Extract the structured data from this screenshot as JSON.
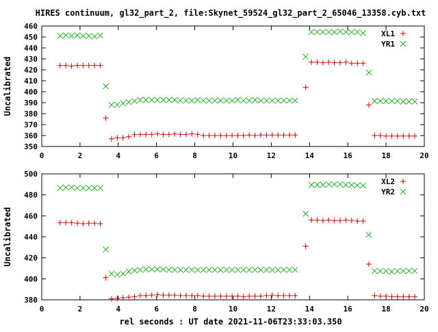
{
  "title": "HIRES continuum, gl32_part_2, file:Skynet_59524_gl32_part_2_65046_13358.cyb.txt",
  "xlabel": "rel seconds : UT date 2021-11-06T23:33:03.350",
  "colors": {
    "red": "#cc0000",
    "green": "#22aa22",
    "frame": "#000000"
  },
  "chart_data": [
    {
      "type": "scatter",
      "ylabel": "Uncalibrated",
      "xlim": [
        0,
        20
      ],
      "ylim": [
        350,
        460
      ],
      "x_ticks": [
        0,
        2,
        4,
        6,
        8,
        10,
        12,
        14,
        16,
        18,
        20
      ],
      "y_ticks": [
        350,
        360,
        370,
        380,
        390,
        400,
        410,
        420,
        430,
        440,
        450,
        460
      ],
      "legend_placement": "top-right",
      "grid": false,
      "series": [
        {
          "name": "XL1",
          "marker": "plus",
          "color": "#cc0000",
          "x": [
            0.96,
            1.26,
            1.56,
            1.86,
            2.16,
            2.46,
            2.76,
            3.06,
            3.35,
            3.65,
            3.95,
            4.25,
            4.55,
            4.85,
            5.15,
            5.45,
            5.75,
            6.05,
            6.35,
            6.65,
            6.95,
            7.25,
            7.55,
            7.85,
            8.15,
            8.45,
            8.75,
            9.05,
            9.35,
            9.65,
            9.95,
            10.25,
            10.55,
            10.85,
            11.15,
            11.45,
            11.75,
            12.05,
            12.35,
            12.65,
            12.95,
            13.25,
            13.8,
            14.1,
            14.4,
            14.7,
            15.0,
            15.3,
            15.6,
            15.9,
            16.2,
            16.5,
            16.8,
            17.1,
            17.4,
            17.7,
            18.0,
            18.3,
            18.6,
            18.9,
            19.2,
            19.5
          ],
          "y": [
            424,
            424,
            423.5,
            424,
            424,
            424,
            424,
            424,
            376,
            357,
            358,
            358,
            359,
            361,
            361,
            361,
            361,
            361.5,
            361,
            361,
            361.5,
            361,
            361,
            361.5,
            361,
            360,
            360,
            360,
            360,
            360,
            360,
            360,
            360,
            360.5,
            360,
            360.5,
            360.5,
            360.5,
            360.5,
            360.5,
            360.5,
            360.5,
            404,
            427,
            427,
            426.5,
            427,
            426.5,
            426.5,
            427,
            426,
            426,
            426,
            388,
            360,
            360,
            359.5,
            359.5,
            359.5,
            359.5,
            359.5,
            359.5
          ]
        },
        {
          "name": "YR1",
          "marker": "cross",
          "color": "#22aa22",
          "x": [
            0.96,
            1.26,
            1.56,
            1.86,
            2.16,
            2.46,
            2.76,
            3.06,
            3.35,
            3.65,
            3.95,
            4.25,
            4.55,
            4.85,
            5.15,
            5.45,
            5.75,
            6.05,
            6.35,
            6.65,
            6.95,
            7.25,
            7.55,
            7.85,
            8.15,
            8.45,
            8.75,
            9.05,
            9.35,
            9.65,
            9.95,
            10.25,
            10.55,
            10.85,
            11.15,
            11.45,
            11.75,
            12.05,
            12.35,
            12.65,
            12.95,
            13.25,
            13.8,
            14.1,
            14.4,
            14.7,
            15.0,
            15.3,
            15.6,
            15.9,
            16.2,
            16.5,
            16.8,
            17.1,
            17.4,
            17.7,
            18.0,
            18.3,
            18.6,
            18.9,
            19.2,
            19.5
          ],
          "y": [
            451,
            451.5,
            451,
            451.5,
            451,
            451,
            450.5,
            451.5,
            405,
            388,
            388,
            389.5,
            390.5,
            391.5,
            392.5,
            392.5,
            392.5,
            392.5,
            392.5,
            392.5,
            392.5,
            392,
            392,
            392,
            392.5,
            392,
            392,
            392,
            392,
            392,
            392,
            392.5,
            392,
            392,
            392.5,
            392,
            392,
            392,
            392,
            392,
            392,
            392,
            432,
            454.5,
            454.5,
            454.5,
            454.5,
            454.5,
            455,
            454.5,
            454.5,
            454.5,
            453.5,
            417.5,
            391.5,
            391.5,
            391.5,
            391.5,
            391.5,
            391,
            391,
            391
          ]
        }
      ]
    },
    {
      "type": "scatter",
      "ylabel": "Uncalibrated",
      "xlim": [
        0,
        20
      ],
      "ylim": [
        380,
        500
      ],
      "x_ticks": [
        0,
        2,
        4,
        6,
        8,
        10,
        12,
        14,
        16,
        18,
        20
      ],
      "y_ticks": [
        380,
        400,
        420,
        440,
        460,
        480,
        500
      ],
      "legend_placement": "top-right",
      "grid": false,
      "series": [
        {
          "name": "XL2",
          "marker": "plus",
          "color": "#cc0000",
          "x": [
            0.96,
            1.26,
            1.56,
            1.86,
            2.16,
            2.46,
            2.76,
            3.06,
            3.35,
            3.65,
            3.95,
            4.25,
            4.55,
            4.85,
            5.15,
            5.45,
            5.75,
            6.05,
            6.35,
            6.65,
            6.95,
            7.25,
            7.55,
            7.85,
            8.15,
            8.45,
            8.75,
            9.05,
            9.35,
            9.65,
            9.95,
            10.25,
            10.55,
            10.85,
            11.15,
            11.45,
            11.75,
            12.05,
            12.35,
            12.65,
            12.95,
            13.25,
            13.8,
            14.1,
            14.4,
            14.7,
            15.0,
            15.3,
            15.6,
            15.9,
            16.2,
            16.5,
            16.8,
            17.1,
            17.4,
            17.7,
            18.0,
            18.3,
            18.6,
            18.9,
            19.2,
            19.5
          ],
          "y": [
            453.5,
            453.5,
            453.5,
            453,
            452.5,
            453,
            453,
            452.5,
            401,
            381,
            381.5,
            382,
            382.5,
            383,
            384,
            384,
            384.5,
            385,
            384.5,
            384.5,
            384.5,
            384,
            384,
            384,
            384,
            383.5,
            383.5,
            383.5,
            383.5,
            383.5,
            383.5,
            383.5,
            383,
            383.5,
            383.5,
            383.5,
            384,
            384.5,
            384,
            384,
            384,
            384,
            431,
            456,
            456,
            455.5,
            456,
            455.5,
            455.5,
            456,
            455.5,
            455,
            455,
            414,
            384,
            383.5,
            383.5,
            383,
            383,
            383,
            383,
            383
          ]
        },
        {
          "name": "YR2",
          "marker": "cross",
          "color": "#22aa22",
          "x": [
            0.96,
            1.26,
            1.56,
            1.86,
            2.16,
            2.46,
            2.76,
            3.06,
            3.35,
            3.65,
            3.95,
            4.25,
            4.55,
            4.85,
            5.15,
            5.45,
            5.75,
            6.05,
            6.35,
            6.65,
            6.95,
            7.25,
            7.55,
            7.85,
            8.15,
            8.45,
            8.75,
            9.05,
            9.35,
            9.65,
            9.95,
            10.25,
            10.55,
            10.85,
            11.15,
            11.45,
            11.75,
            12.05,
            12.35,
            12.65,
            12.95,
            13.25,
            13.8,
            14.1,
            14.4,
            14.7,
            15.0,
            15.3,
            15.6,
            15.9,
            16.2,
            16.5,
            16.8,
            17.1,
            17.4,
            17.7,
            18.0,
            18.3,
            18.6,
            18.9,
            19.2,
            19.5
          ],
          "y": [
            486.5,
            487,
            487,
            486.5,
            486.5,
            486.5,
            486.5,
            486.5,
            428,
            405,
            404,
            405,
            407,
            408,
            408.5,
            409,
            409,
            409,
            409,
            408.5,
            408.5,
            408.5,
            408.5,
            408.5,
            408.5,
            408.5,
            408.5,
            408.5,
            408.5,
            408.5,
            408.5,
            408.5,
            408.5,
            408.5,
            408.5,
            408.5,
            408.5,
            408.5,
            408.5,
            408.5,
            408.5,
            408.5,
            462,
            489.5,
            489.5,
            489.5,
            490,
            490,
            490,
            489.5,
            489.5,
            489,
            489,
            442,
            407.5,
            407.5,
            407.5,
            407,
            407.5,
            407.5,
            407.5,
            407.5
          ]
        }
      ]
    }
  ]
}
